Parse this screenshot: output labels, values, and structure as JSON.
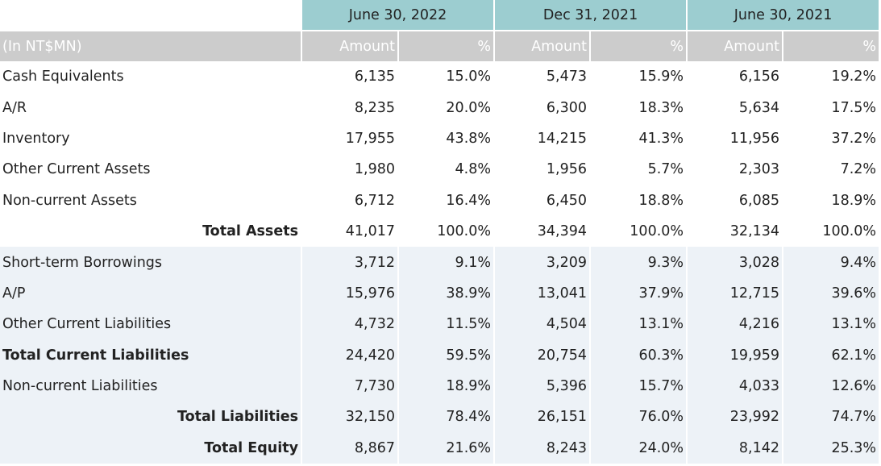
{
  "header": {
    "periods": [
      "June 30, 2022",
      "Dec 31, 2021",
      "June 30, 2021"
    ],
    "unit_label": "(In NT$MN)",
    "amount_label": "Amount",
    "pct_label": "%"
  },
  "rows": [
    {
      "label": "Cash Equivalents",
      "values": [
        "6,135",
        "15.0%",
        "5,473",
        "15.9%",
        "6,156",
        "19.2%"
      ]
    },
    {
      "label": "A/R",
      "values": [
        "8,235",
        "20.0%",
        "6,300",
        "18.3%",
        "5,634",
        "17.5%"
      ]
    },
    {
      "label": "Inventory",
      "values": [
        "17,955",
        "43.8%",
        "14,215",
        "41.3%",
        "11,956",
        "37.2%"
      ]
    },
    {
      "label": "Other Current Assets",
      "values": [
        "1,980",
        "4.8%",
        "1,956",
        "5.7%",
        "2,303",
        "7.2%"
      ]
    },
    {
      "label": "Non-current Assets",
      "values": [
        "6,712",
        "16.4%",
        "6,450",
        "18.8%",
        "6,085",
        "18.9%"
      ]
    },
    {
      "label": "Total Assets",
      "values": [
        "41,017",
        "100.0%",
        "34,394",
        "100.0%",
        "32,134",
        "100.0%"
      ]
    },
    {
      "label": "Short-term Borrowings",
      "values": [
        "3,712",
        "9.1%",
        "3,209",
        "9.3%",
        "3,028",
        "9.4%"
      ]
    },
    {
      "label": "A/P",
      "values": [
        "15,976",
        "38.9%",
        "13,041",
        "37.9%",
        "12,715",
        "39.6%"
      ]
    },
    {
      "label": "Other Current Liabilities",
      "values": [
        "4,732",
        "11.5%",
        "4,504",
        "13.1%",
        "4,216",
        "13.1%"
      ]
    },
    {
      "label": "Total Current Liabilities",
      "values": [
        "24,420",
        "59.5%",
        "20,754",
        "60.3%",
        "19,959",
        "62.1%"
      ]
    },
    {
      "label": "Non-current Liabilities",
      "values": [
        "7,730",
        "18.9%",
        "5,396",
        "15.7%",
        "4,033",
        "12.6%"
      ]
    },
    {
      "label": "Total Liabilities",
      "values": [
        "32,150",
        "78.4%",
        "26,151",
        "76.0%",
        "23,992",
        "74.7%"
      ]
    },
    {
      "label": "Total Equity",
      "values": [
        "8,867",
        "21.6%",
        "8,243",
        "24.0%",
        "8,142",
        "25.3%"
      ]
    }
  ],
  "colors": {
    "period_header_bg": "#9ccdd0",
    "sub_header_bg": "#cccccc",
    "liabilities_shade": "#edf2f7"
  }
}
